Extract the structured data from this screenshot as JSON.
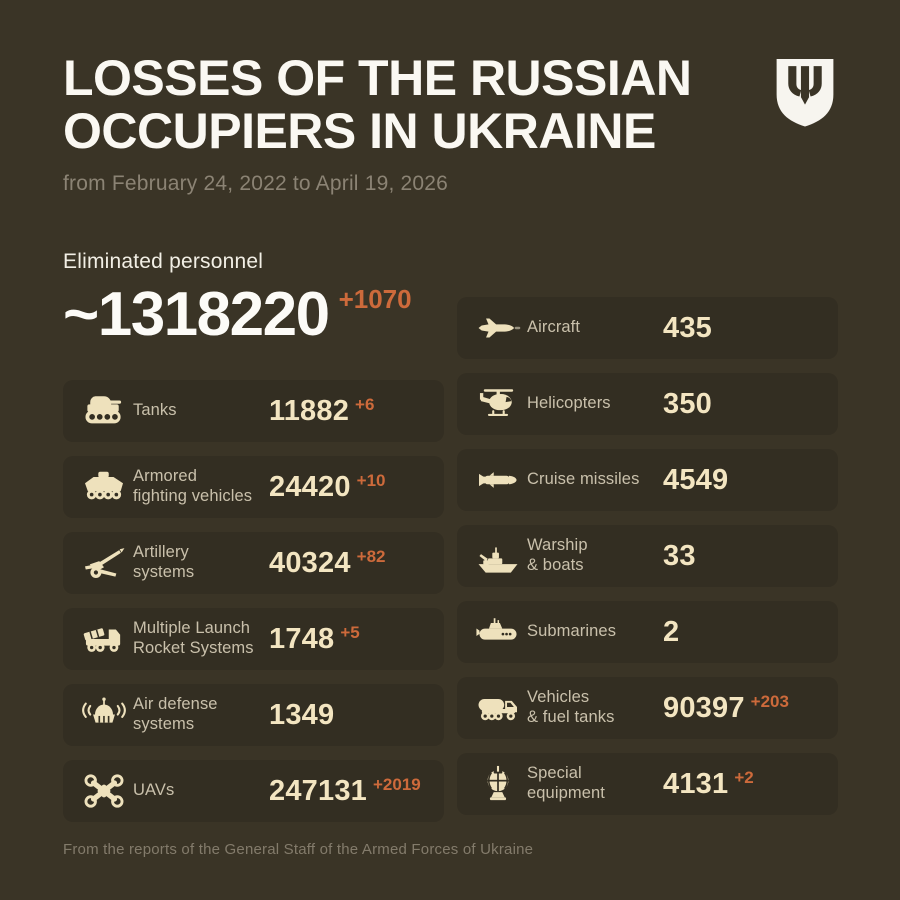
{
  "header": {
    "title_line1": "LOSSES OF THE RUSSIAN",
    "title_line2": "OCCUPIERS IN UKRAINE",
    "subtitle": "from February 24, 2022 to April 19, 2026",
    "logo_icon": "ukraine-trident-shield-icon"
  },
  "summary": {
    "label": "Eliminated personnel",
    "value": "~1318220",
    "delta": "+1070"
  },
  "cards_left": [
    {
      "icon": "tank-icon",
      "label": "Tanks",
      "label_lines": [
        "Tanks"
      ],
      "value": "11882",
      "delta": "+6"
    },
    {
      "icon": "armored-fighting-vehicle-icon",
      "label": "Armored fighting vehicles",
      "label_lines": [
        "Armored",
        "fighting vehicles"
      ],
      "value": "24420",
      "delta": "+10"
    },
    {
      "icon": "artillery-icon",
      "label": "Artillery systems",
      "label_lines": [
        "Artillery",
        "systems"
      ],
      "value": "40324",
      "delta": "+82"
    },
    {
      "icon": "mlrs-icon",
      "label": "Multiple Launch Rocket Systems",
      "label_lines": [
        "Multiple Launch",
        "Rocket Systems"
      ],
      "value": "1748",
      "delta": "+5"
    },
    {
      "icon": "air-defense-icon",
      "label": "Air defense systems",
      "label_lines": [
        "Air defense",
        "systems"
      ],
      "value": "1349",
      "delta": ""
    },
    {
      "icon": "uav-icon",
      "label": "UAVs",
      "label_lines": [
        "UAVs"
      ],
      "value": "247131",
      "delta": "+2019"
    }
  ],
  "cards_right": [
    {
      "icon": "aircraft-icon",
      "label": "Aircraft",
      "label_lines": [
        "Aircraft"
      ],
      "value": "435",
      "delta": ""
    },
    {
      "icon": "helicopter-icon",
      "label": "Helicopters",
      "label_lines": [
        "Helicopters"
      ],
      "value": "350",
      "delta": ""
    },
    {
      "icon": "cruise-missile-icon",
      "label": "Cruise missiles",
      "label_lines": [
        "Cruise missiles"
      ],
      "value": "4549",
      "delta": ""
    },
    {
      "icon": "warship-icon",
      "label": "Warship & boats",
      "label_lines": [
        "Warship",
        "& boats"
      ],
      "value": "33",
      "delta": ""
    },
    {
      "icon": "submarine-icon",
      "label": "Submarines",
      "label_lines": [
        "Submarines"
      ],
      "value": "2",
      "delta": ""
    },
    {
      "icon": "fuel-truck-icon",
      "label": "Vehicles & fuel tanks",
      "label_lines": [
        "Vehicles",
        "& fuel tanks"
      ],
      "value": "90397",
      "delta": "+203"
    },
    {
      "icon": "special-equipment-icon",
      "label": "Special equipment",
      "label_lines": [
        "Special",
        "equipment"
      ],
      "value": "4131",
      "delta": "+2"
    }
  ],
  "footer": {
    "source": "From the reports of the General Staff of the Armed Forces of Ukraine"
  },
  "colors": {
    "background": "#3a3426",
    "card": "#332e22",
    "title_white": "#faf8f2",
    "value_cream": "#f3e5c1",
    "icon_cream": "#eee1bc",
    "delta_orange": "#cd6a3b",
    "muted_gray": "#8b8374"
  },
  "chart_data": {
    "type": "table",
    "title": "Losses of the Russian occupiers in Ukraine",
    "period": "from February 24, 2022 to April 19, 2026",
    "source": "From the reports of the General Staff of the Armed Forces of Ukraine",
    "categories": [
      "Eliminated personnel",
      "Tanks",
      "Armored fighting vehicles",
      "Artillery systems",
      "Multiple Launch Rocket Systems",
      "Air defense systems",
      "UAVs",
      "Aircraft",
      "Helicopters",
      "Cruise missiles",
      "Warship & boats",
      "Submarines",
      "Vehicles & fuel tanks",
      "Special equipment"
    ],
    "values": [
      1318220,
      11882,
      24420,
      40324,
      1748,
      1349,
      247131,
      435,
      350,
      4549,
      33,
      2,
      90397,
      4131
    ],
    "daily_change": [
      1070,
      6,
      10,
      82,
      5,
      null,
      2019,
      null,
      null,
      null,
      null,
      null,
      203,
      2
    ],
    "notes": "Eliminated personnel value is approximate (~)"
  }
}
